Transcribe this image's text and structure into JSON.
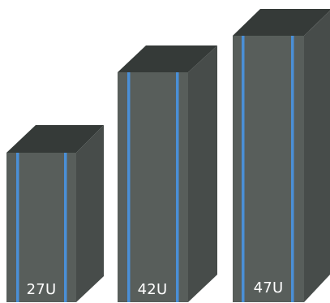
{
  "racks": [
    {
      "label": "27U",
      "size_u": 27
    },
    {
      "label": "42U",
      "size_u": 42
    },
    {
      "label": "47U",
      "size_u": 47
    }
  ],
  "colors": {
    "top_face": "#353a38",
    "front_face": "#585e5b",
    "side_face": "#474c4a",
    "rail": "#4a8fd6",
    "label": "#ffffff"
  }
}
